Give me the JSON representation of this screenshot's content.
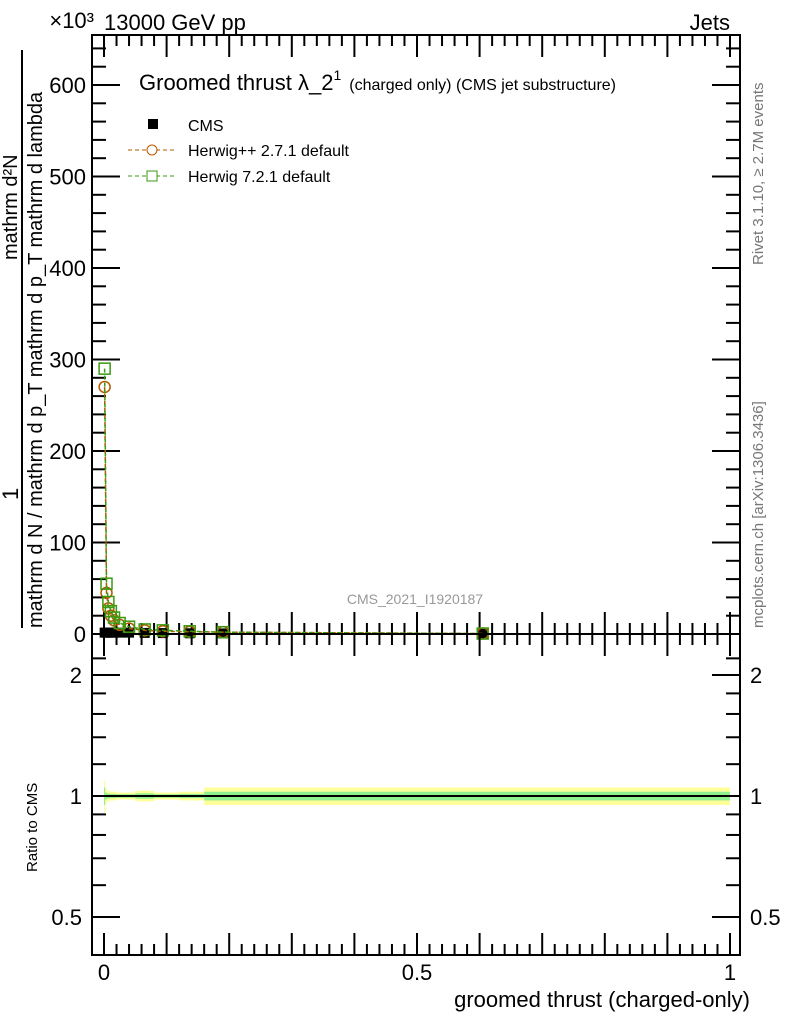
{
  "header": {
    "left": "13000 GeV pp",
    "right": "Jets",
    "scale_label": "×10³"
  },
  "side": {
    "rivet": "Rivet 3.1.10, ≥ 2.7M events",
    "mcplots": "mcplots.cern.ch [arXiv:1306.3436]"
  },
  "watermark": "CMS_2021_I1920187",
  "colors": {
    "cms": "#000000",
    "herwigpp": "#b35a00",
    "herwig7": "#3a9a10",
    "band_yellow": "#ffff99",
    "band_green": "#8ef08e"
  },
  "chart_data": [
    {
      "type": "scatter",
      "title_main": "Groomed thrust λ_2",
      "title_sup": "1",
      "title_small": "(charged only) (CMS jet substructure)",
      "ylabel_top": "1",
      "ylabel_num": "mathrm d²N",
      "ylabel_den": "mathrm d N / mathrm d p_T mathrm d p_T mathrm d lambda",
      "ylim": [
        0,
        650
      ],
      "yticks": [
        0,
        100,
        200,
        300,
        400,
        500,
        600
      ],
      "xlim": [
        -0.02,
        1.02
      ],
      "legend": [
        "CMS",
        "Herwig++ 2.7.1 default",
        "Herwig 7.2.1 default"
      ],
      "x": [
        0.001,
        0.004,
        0.007,
        0.011,
        0.016,
        0.025,
        0.04,
        0.065,
        0.094,
        0.137,
        0.19,
        0.605
      ],
      "series": [
        {
          "name": "CMS",
          "values": [
            1.5,
            1.5,
            1.5,
            1.5,
            1.5,
            1.5,
            1.5,
            1.2,
            1.0,
            0.8,
            0.6,
            0.3
          ]
        },
        {
          "name": "Herwig++ 2.7.1 default",
          "values": [
            270,
            45,
            28,
            20,
            15,
            10,
            6,
            4,
            3,
            2.5,
            2,
            0.5
          ]
        },
        {
          "name": "Herwig 7.2.1 default",
          "values": [
            290,
            55,
            35,
            25,
            18,
            12,
            8,
            5,
            4,
            3,
            2,
            0.5
          ]
        }
      ]
    },
    {
      "type": "line",
      "ylabel": "Ratio to CMS",
      "xlabel": "groomed thrust (charged-only)",
      "ylim": [
        0.4,
        2.3
      ],
      "yticks": [
        0.5,
        1,
        2
      ],
      "ytick_labels": [
        "0.5",
        "1",
        "2"
      ],
      "xticks": [
        0,
        0.5,
        1
      ],
      "xtick_labels": [
        "0",
        "0.5",
        "1"
      ],
      "band_edges": [
        0,
        0.002,
        0.005,
        0.01,
        0.02,
        0.05,
        0.08,
        0.12,
        0.16,
        1.0
      ],
      "band_yellow": [
        0.09,
        0.04,
        0.03,
        0.025,
        0.02,
        0.03,
        0.02,
        0.025,
        0.05,
        0.045
      ],
      "band_green": [
        0.05,
        0.02,
        0.015,
        0.012,
        0.01,
        0.015,
        0.01,
        0.012,
        0.025,
        0.02
      ]
    }
  ]
}
